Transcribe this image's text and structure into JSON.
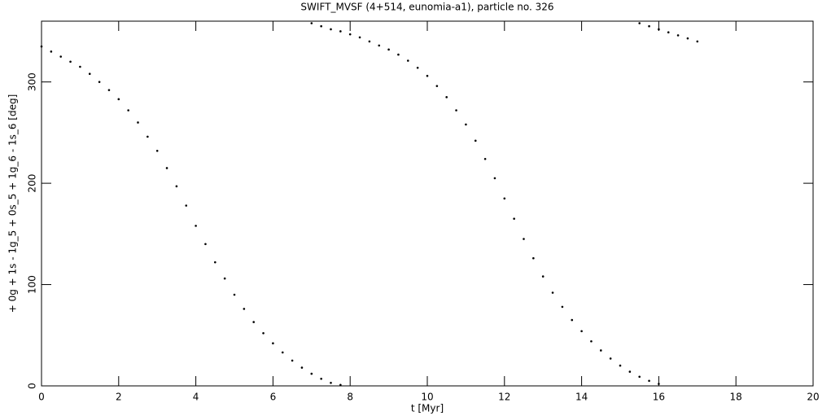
{
  "chart_data": {
    "type": "scatter",
    "title": "SWIFT_MVSF (4+514, eunomia-a1), particle no. 326",
    "x_label": "t [Myr]",
    "y_label": "+ 0g + 1s - 1g_5 + 0s_5 + 1g_6 - 1s_6 [deg]",
    "color": "#000000",
    "xlim": [
      0,
      20
    ],
    "xticks": [
      0,
      2,
      4,
      6,
      8,
      10,
      12,
      14,
      16,
      18,
      20
    ],
    "ylim": [
      0,
      360
    ],
    "yticks": [
      0,
      100,
      200,
      300
    ],
    "x": [
      0,
      0.25,
      0.5,
      0.75,
      1,
      1.25,
      1.5,
      1.75,
      2,
      2.25,
      2.5,
      2.75,
      3,
      3.25,
      3.5,
      3.75,
      4,
      4.25,
      4.5,
      4.75,
      5,
      5.25,
      5.5,
      5.75,
      6,
      6.25,
      6.5,
      6.75,
      7,
      7.25,
      7.5,
      7.75,
      7,
      7.25,
      7.5,
      7.75,
      8,
      8.25,
      8.5,
      8.75,
      9,
      9.25,
      9.5,
      9.75,
      10,
      10.25,
      10.5,
      10.75,
      11,
      11.25,
      11.5,
      11.75,
      12,
      12.25,
      12.5,
      12.75,
      13,
      13.25,
      13.5,
      13.75,
      14,
      14.25,
      14.5,
      14.75,
      15,
      15.25,
      15.5,
      15.75,
      16,
      15.5,
      15.75,
      16,
      16.25,
      16.5,
      16.75,
      17
    ],
    "values": [
      335,
      330,
      325,
      320,
      315,
      308,
      300,
      292,
      283,
      272,
      260,
      246,
      232,
      215,
      197,
      178,
      158,
      140,
      122,
      106,
      90,
      76,
      63,
      52,
      42,
      33,
      25,
      18,
      12,
      7,
      3,
      1,
      358,
      355,
      352,
      350,
      347,
      344,
      340,
      336,
      332,
      327,
      321,
      314,
      306,
      296,
      285,
      272,
      258,
      242,
      224,
      205,
      185,
      165,
      145,
      126,
      108,
      92,
      78,
      65,
      54,
      44,
      35,
      27,
      20,
      14,
      9,
      5,
      2,
      358,
      355,
      352,
      349,
      346,
      343,
      340
    ]
  }
}
